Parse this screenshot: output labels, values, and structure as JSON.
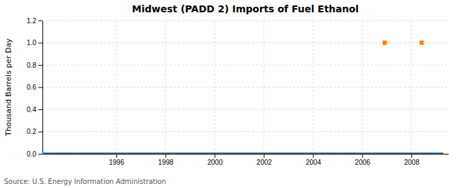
{
  "chart_data": {
    "type": "line",
    "title": "Midwest (PADD 2) Imports of Fuel Ethanol",
    "ylabel": "Thousand Barrels per Day",
    "annotation": "Source: U.S. Energy Information Administration",
    "grid": true,
    "xlim": [
      1993.0,
      2009.5
    ],
    "ylim": [
      0.0,
      1.2
    ],
    "xticks": [
      1996,
      1998,
      2000,
      2002,
      2004,
      2006,
      2008
    ],
    "yticks": [
      {
        "value": 0.0,
        "label": "0.0"
      },
      0.2,
      0.4,
      0.6,
      0.8,
      {
        "value": 1.0,
        "label": "1.0"
      },
      1.2
    ],
    "series": [
      {
        "type": "line",
        "marker": "square",
        "x": [
          1993.0,
          1993.083,
          1993.167,
          1993.25,
          1993.333,
          1993.417,
          1993.5,
          1993.583,
          1993.667,
          1993.75,
          1993.833,
          1993.917,
          1994.0,
          1994.083,
          1994.167,
          1994.25,
          1994.333,
          1994.417,
          1994.5,
          1994.583,
          1994.667,
          1994.75,
          1994.833,
          1994.917,
          1995.0,
          1995.083,
          1995.167,
          1995.25,
          1995.333,
          1995.417,
          1995.5,
          1995.583,
          1995.667,
          1995.75,
          1995.833,
          1995.917,
          1996.0,
          1996.083,
          1996.167,
          1996.25,
          1996.333,
          1996.417,
          1996.5,
          1996.583,
          1996.667,
          1996.75,
          1996.833,
          1996.917,
          1997.0,
          1997.083,
          1997.167,
          1997.25,
          1997.333,
          1997.417,
          1997.5,
          1997.583,
          1997.667,
          1997.75,
          1997.833,
          1997.917,
          1998.0,
          1998.083,
          1998.167,
          1998.25,
          1998.333,
          1998.417,
          1998.5,
          1998.583,
          1998.667,
          1998.75,
          1998.833,
          1998.917,
          1999.0,
          1999.083,
          1999.167,
          1999.25,
          1999.333,
          1999.417,
          1999.5,
          1999.583,
          1999.667,
          1999.75,
          1999.833,
          1999.917,
          2000.0,
          2000.083,
          2000.167,
          2000.25,
          2000.333,
          2000.417,
          2000.5,
          2000.583,
          2000.667,
          2000.75,
          2000.833,
          2000.917,
          2001.0,
          2001.083,
          2001.167,
          2001.25,
          2001.333,
          2001.417,
          2001.5,
          2001.583,
          2001.667,
          2001.75,
          2001.833,
          2001.917,
          2002.0,
          2002.083,
          2002.167,
          2002.25,
          2002.333,
          2002.417,
          2002.5,
          2002.583,
          2002.667,
          2002.75,
          2002.833,
          2002.917,
          2003.0,
          2003.083,
          2003.167,
          2003.25,
          2003.333,
          2003.417,
          2003.5,
          2003.583,
          2003.667,
          2003.75,
          2003.833,
          2003.917,
          2004.0,
          2004.083,
          2004.167,
          2004.25,
          2004.333,
          2004.417,
          2004.5,
          2004.583,
          2004.667,
          2004.75,
          2004.833,
          2004.917,
          2005.0,
          2005.083,
          2005.167,
          2005.25,
          2005.333,
          2005.417,
          2005.5,
          2005.583,
          2005.667,
          2005.75,
          2005.833,
          2005.917,
          2006.0,
          2006.083,
          2006.167,
          2006.25,
          2006.333,
          2006.417,
          2006.5,
          2006.583,
          2006.667,
          2006.75,
          2006.833,
          2006.917,
          2007.0,
          2007.083,
          2007.167,
          2007.25,
          2007.333,
          2007.417,
          2007.5,
          2007.583,
          2007.667,
          2007.75,
          2007.833,
          2007.917,
          2008.0,
          2008.083,
          2008.167,
          2008.25,
          2008.333,
          2008.417,
          2008.5,
          2008.583,
          2008.667,
          2008.75,
          2008.833,
          2008.917,
          2009.0,
          2009.083,
          2009.167,
          2009.25
        ],
        "values": [
          0,
          0,
          0,
          0,
          0,
          0,
          0,
          0,
          0,
          0,
          0,
          0,
          0,
          0,
          0,
          0,
          0,
          0,
          0,
          0,
          0,
          0,
          0,
          0,
          0,
          0,
          0,
          0,
          0,
          0,
          0,
          0,
          0,
          0,
          0,
          0,
          0,
          0,
          0,
          0,
          0,
          0,
          0,
          0,
          0,
          0,
          0,
          0,
          0,
          0,
          0,
          0,
          0,
          0,
          0,
          0,
          0,
          0,
          0,
          0,
          0,
          0,
          0,
          0,
          0,
          0,
          0,
          0,
          0,
          0,
          0,
          0,
          0,
          0,
          0,
          0,
          0,
          0,
          0,
          0,
          0,
          0,
          0,
          0,
          0,
          0,
          0,
          0,
          0,
          0,
          0,
          0,
          0,
          0,
          0,
          0,
          0,
          0,
          0,
          0,
          0,
          0,
          0,
          0,
          0,
          0,
          0,
          0,
          0,
          0,
          0,
          0,
          0,
          0,
          0,
          0,
          0,
          0,
          0,
          0,
          0,
          0,
          0,
          0,
          0,
          0,
          0,
          0,
          0,
          0,
          0,
          0,
          0,
          0,
          0,
          0,
          0,
          0,
          0,
          0,
          0,
          0,
          0,
          0,
          0,
          0,
          0,
          0,
          0,
          0,
          0,
          0,
          0,
          0,
          0,
          0,
          0,
          0,
          0,
          0,
          0,
          0,
          0,
          0,
          0,
          0,
          0,
          0,
          0,
          0,
          0,
          0,
          0,
          0,
          0,
          0,
          0,
          0,
          0,
          0,
          0,
          0,
          0,
          0,
          0,
          0,
          0,
          0,
          0,
          0,
          0,
          0,
          0,
          0,
          0,
          0
        ]
      },
      {
        "type": "scatter",
        "marker": "square",
        "x": [
          2006.917,
          2008.417
        ],
        "values": [
          1.0,
          1.0
        ]
      }
    ]
  }
}
